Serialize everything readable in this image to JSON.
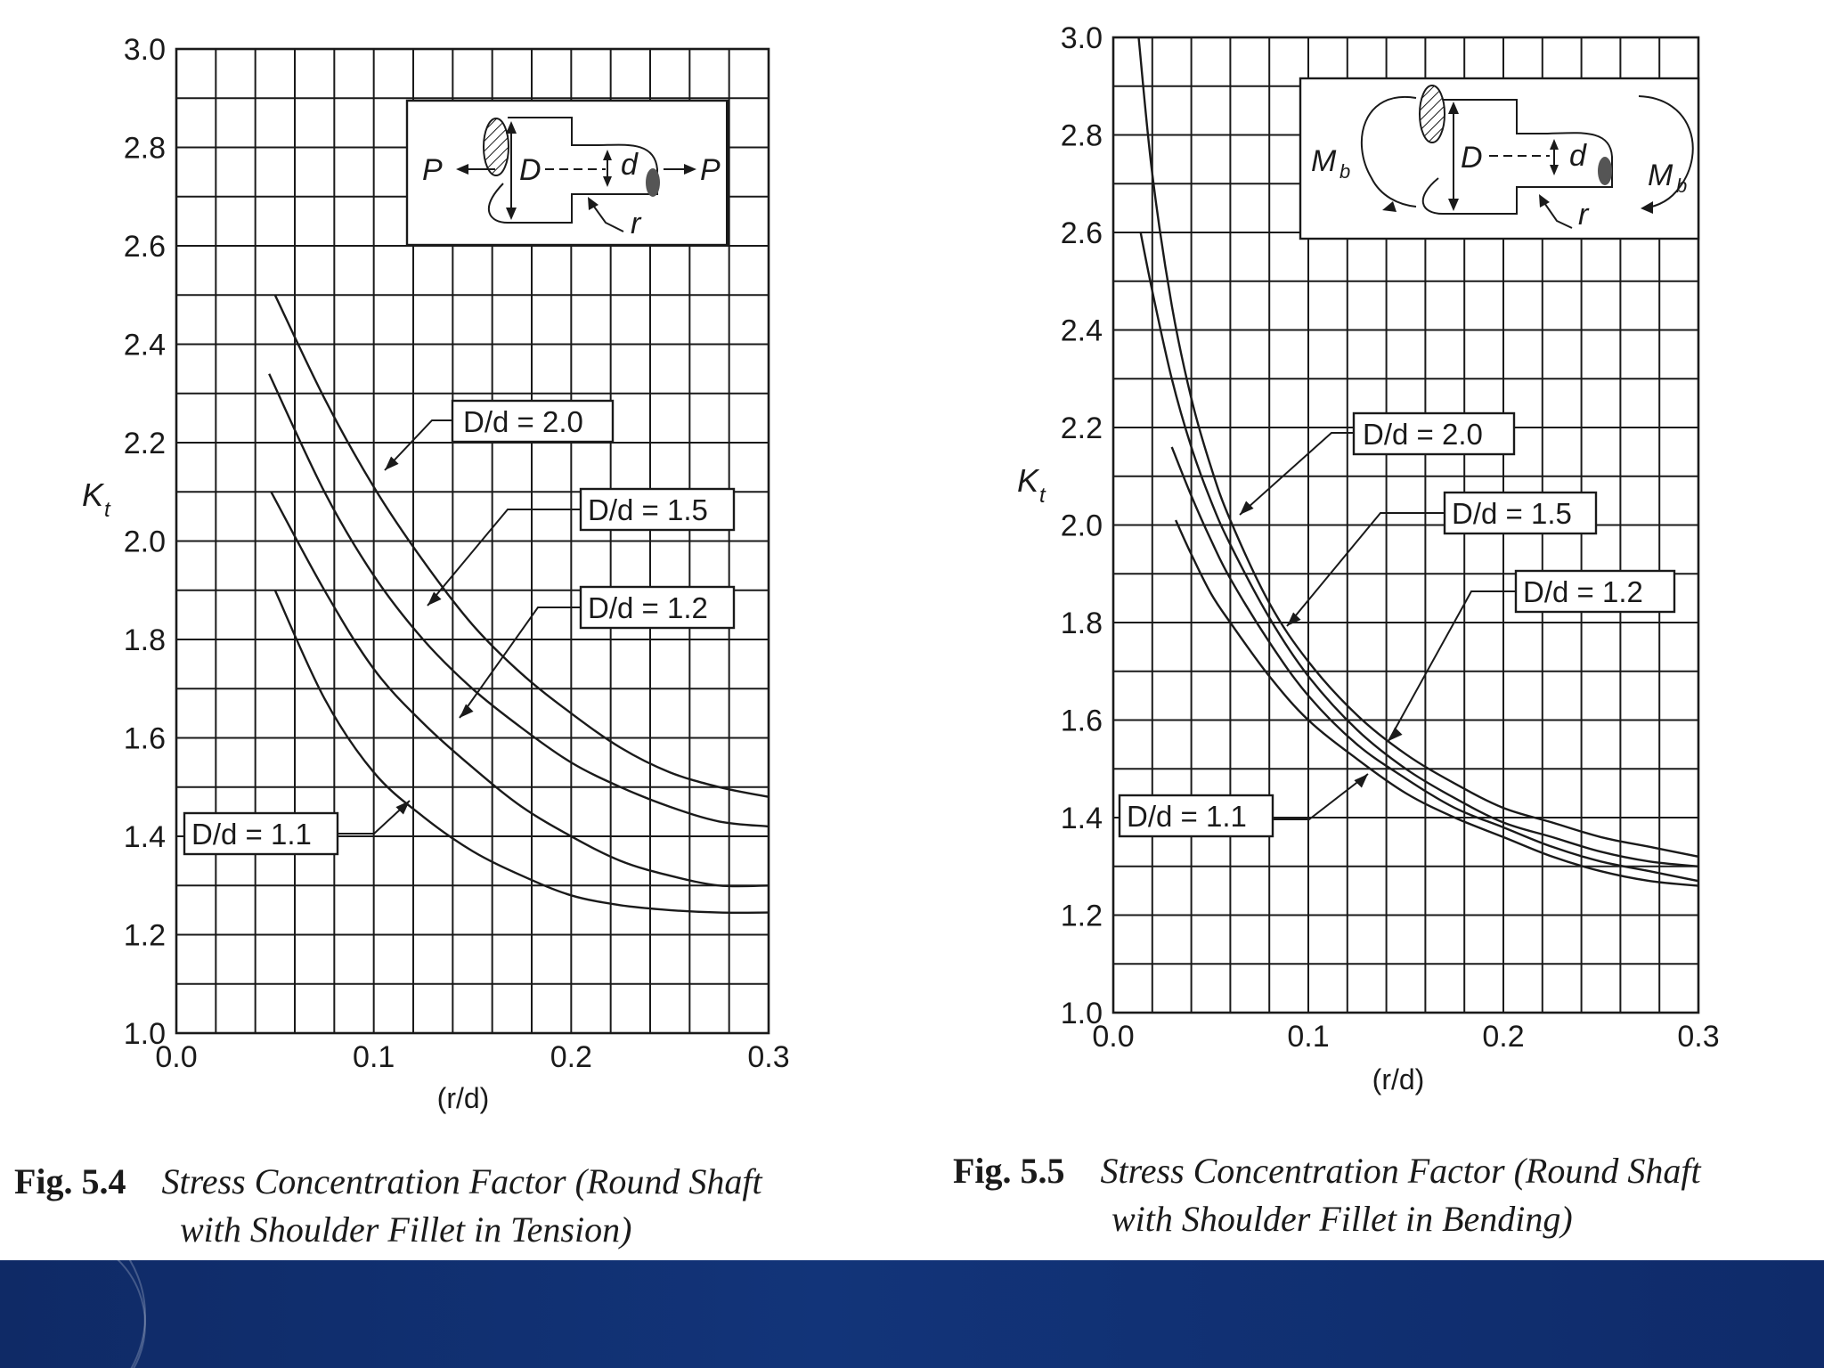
{
  "chart_data": [
    {
      "type": "line",
      "xlabel": "(r/d)",
      "ylabel": "K_t",
      "xlim": [
        0.0,
        0.3
      ],
      "ylim": [
        1.0,
        3.0
      ],
      "x_ticks": [
        "0.0",
        "0.1",
        "0.2",
        "0.3"
      ],
      "y_ticks": [
        "1.0",
        "1.2",
        "1.4",
        "1.6",
        "1.8",
        "2.0",
        "2.2",
        "2.4",
        "2.6",
        "2.8",
        "3.0"
      ],
      "grid": true,
      "inset_labels": [
        "P",
        "D",
        "d",
        "P",
        "r"
      ],
      "series": [
        {
          "name": "D/d = 2.0",
          "x": [
            0.05,
            0.075,
            0.1,
            0.125,
            0.15,
            0.175,
            0.2,
            0.225,
            0.25,
            0.275,
            0.3
          ],
          "y": [
            2.5,
            2.29,
            2.11,
            1.96,
            1.83,
            1.73,
            1.65,
            1.58,
            1.53,
            1.5,
            1.48
          ]
        },
        {
          "name": "D/d = 1.5",
          "x": [
            0.047,
            0.075,
            0.1,
            0.125,
            0.15,
            0.175,
            0.2,
            0.225,
            0.25,
            0.275,
            0.3
          ],
          "y": [
            2.34,
            2.1,
            1.93,
            1.8,
            1.7,
            1.62,
            1.55,
            1.5,
            1.46,
            1.43,
            1.42
          ]
        },
        {
          "name": "D/d = 1.2",
          "x": [
            0.048,
            0.075,
            0.1,
            0.125,
            0.15,
            0.175,
            0.2,
            0.225,
            0.25,
            0.275,
            0.3
          ],
          "y": [
            2.1,
            1.9,
            1.74,
            1.63,
            1.54,
            1.46,
            1.4,
            1.35,
            1.32,
            1.3,
            1.3
          ]
        },
        {
          "name": "D/d = 1.1",
          "x": [
            0.05,
            0.075,
            0.1,
            0.125,
            0.15,
            0.175,
            0.2,
            0.225,
            0.25,
            0.275,
            0.3
          ],
          "y": [
            1.9,
            1.68,
            1.53,
            1.44,
            1.37,
            1.32,
            1.28,
            1.26,
            1.25,
            1.245,
            1.245
          ]
        }
      ]
    },
    {
      "type": "line",
      "xlabel": "(r/d)",
      "ylabel": "K_t",
      "xlim": [
        0.0,
        0.3
      ],
      "ylim": [
        1.0,
        3.0
      ],
      "x_ticks": [
        "0.0",
        "0.1",
        "0.2",
        "0.3"
      ],
      "y_ticks": [
        "1.0",
        "1.2",
        "1.4",
        "1.6",
        "1.8",
        "2.0",
        "2.2",
        "2.4",
        "2.6",
        "2.8",
        "3.0"
      ],
      "grid": true,
      "inset_labels": [
        "M",
        "b",
        "D",
        "d",
        "M",
        "b",
        "r"
      ],
      "series": [
        {
          "name": "D/d = 2.0",
          "x": [
            0.013,
            0.02,
            0.03,
            0.04,
            0.05,
            0.06,
            0.08,
            0.1,
            0.125,
            0.15,
            0.175,
            0.2,
            0.225,
            0.25,
            0.275,
            0.3
          ],
          "y": [
            3.0,
            2.72,
            2.45,
            2.26,
            2.12,
            2.01,
            1.84,
            1.72,
            1.61,
            1.53,
            1.47,
            1.42,
            1.39,
            1.36,
            1.34,
            1.32
          ]
        },
        {
          "name": "D/d = 1.5",
          "x": [
            0.014,
            0.02,
            0.03,
            0.04,
            0.05,
            0.06,
            0.08,
            0.1,
            0.125,
            0.15,
            0.175,
            0.2,
            0.225,
            0.25,
            0.275,
            0.3
          ],
          "y": [
            2.6,
            2.48,
            2.3,
            2.16,
            2.05,
            1.96,
            1.81,
            1.69,
            1.58,
            1.5,
            1.44,
            1.39,
            1.36,
            1.33,
            1.31,
            1.3
          ]
        },
        {
          "name": "D/d = 1.2",
          "x": [
            0.03,
            0.04,
            0.05,
            0.06,
            0.08,
            0.1,
            0.125,
            0.15,
            0.175,
            0.2,
            0.225,
            0.25,
            0.275,
            0.3
          ],
          "y": [
            2.16,
            2.06,
            1.97,
            1.89,
            1.76,
            1.65,
            1.55,
            1.48,
            1.42,
            1.38,
            1.34,
            1.31,
            1.29,
            1.27
          ]
        },
        {
          "name": "D/d = 1.1",
          "x": [
            0.032,
            0.04,
            0.05,
            0.06,
            0.08,
            0.1,
            0.125,
            0.15,
            0.175,
            0.2,
            0.225,
            0.25,
            0.275,
            0.3
          ],
          "y": [
            2.01,
            1.94,
            1.86,
            1.8,
            1.69,
            1.6,
            1.52,
            1.45,
            1.4,
            1.36,
            1.32,
            1.29,
            1.27,
            1.26
          ]
        }
      ]
    }
  ],
  "captions": [
    {
      "number": "Fig. 5.4",
      "line1": "Stress Concentration Factor (Round Shaft",
      "line2": "with Shoulder Fillet in Tension)"
    },
    {
      "number": "Fig. 5.5",
      "line1": "Stress Concentration Factor (Round Shaft",
      "line2": "with Shoulder Fillet in Bending)"
    }
  ],
  "theme": {
    "footer_color": "#123479"
  }
}
